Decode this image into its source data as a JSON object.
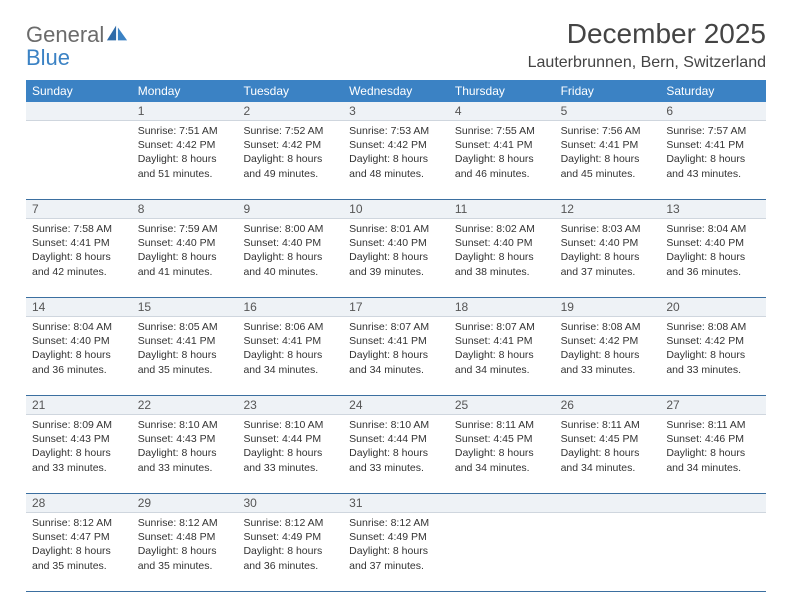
{
  "logo": {
    "general": "General",
    "blue": "Blue"
  },
  "header": {
    "month_title": "December 2025",
    "location": "Lauterbrunnen, Bern, Switzerland"
  },
  "colors": {
    "header_bg": "#3b82c4",
    "daynum_bg": "#eef2f6",
    "rule": "#3b6fa0",
    "text": "#333333"
  },
  "dow": [
    "Sunday",
    "Monday",
    "Tuesday",
    "Wednesday",
    "Thursday",
    "Friday",
    "Saturday"
  ],
  "weeks": [
    {
      "nums": [
        "",
        "1",
        "2",
        "3",
        "4",
        "5",
        "6"
      ],
      "cells": [
        null,
        {
          "sunrise": "Sunrise: 7:51 AM",
          "sunset": "Sunset: 4:42 PM",
          "day1": "Daylight: 8 hours",
          "day2": "and 51 minutes."
        },
        {
          "sunrise": "Sunrise: 7:52 AM",
          "sunset": "Sunset: 4:42 PM",
          "day1": "Daylight: 8 hours",
          "day2": "and 49 minutes."
        },
        {
          "sunrise": "Sunrise: 7:53 AM",
          "sunset": "Sunset: 4:42 PM",
          "day1": "Daylight: 8 hours",
          "day2": "and 48 minutes."
        },
        {
          "sunrise": "Sunrise: 7:55 AM",
          "sunset": "Sunset: 4:41 PM",
          "day1": "Daylight: 8 hours",
          "day2": "and 46 minutes."
        },
        {
          "sunrise": "Sunrise: 7:56 AM",
          "sunset": "Sunset: 4:41 PM",
          "day1": "Daylight: 8 hours",
          "day2": "and 45 minutes."
        },
        {
          "sunrise": "Sunrise: 7:57 AM",
          "sunset": "Sunset: 4:41 PM",
          "day1": "Daylight: 8 hours",
          "day2": "and 43 minutes."
        }
      ]
    },
    {
      "nums": [
        "7",
        "8",
        "9",
        "10",
        "11",
        "12",
        "13"
      ],
      "cells": [
        {
          "sunrise": "Sunrise: 7:58 AM",
          "sunset": "Sunset: 4:41 PM",
          "day1": "Daylight: 8 hours",
          "day2": "and 42 minutes."
        },
        {
          "sunrise": "Sunrise: 7:59 AM",
          "sunset": "Sunset: 4:40 PM",
          "day1": "Daylight: 8 hours",
          "day2": "and 41 minutes."
        },
        {
          "sunrise": "Sunrise: 8:00 AM",
          "sunset": "Sunset: 4:40 PM",
          "day1": "Daylight: 8 hours",
          "day2": "and 40 minutes."
        },
        {
          "sunrise": "Sunrise: 8:01 AM",
          "sunset": "Sunset: 4:40 PM",
          "day1": "Daylight: 8 hours",
          "day2": "and 39 minutes."
        },
        {
          "sunrise": "Sunrise: 8:02 AM",
          "sunset": "Sunset: 4:40 PM",
          "day1": "Daylight: 8 hours",
          "day2": "and 38 minutes."
        },
        {
          "sunrise": "Sunrise: 8:03 AM",
          "sunset": "Sunset: 4:40 PM",
          "day1": "Daylight: 8 hours",
          "day2": "and 37 minutes."
        },
        {
          "sunrise": "Sunrise: 8:04 AM",
          "sunset": "Sunset: 4:40 PM",
          "day1": "Daylight: 8 hours",
          "day2": "and 36 minutes."
        }
      ]
    },
    {
      "nums": [
        "14",
        "15",
        "16",
        "17",
        "18",
        "19",
        "20"
      ],
      "cells": [
        {
          "sunrise": "Sunrise: 8:04 AM",
          "sunset": "Sunset: 4:40 PM",
          "day1": "Daylight: 8 hours",
          "day2": "and 36 minutes."
        },
        {
          "sunrise": "Sunrise: 8:05 AM",
          "sunset": "Sunset: 4:41 PM",
          "day1": "Daylight: 8 hours",
          "day2": "and 35 minutes."
        },
        {
          "sunrise": "Sunrise: 8:06 AM",
          "sunset": "Sunset: 4:41 PM",
          "day1": "Daylight: 8 hours",
          "day2": "and 34 minutes."
        },
        {
          "sunrise": "Sunrise: 8:07 AM",
          "sunset": "Sunset: 4:41 PM",
          "day1": "Daylight: 8 hours",
          "day2": "and 34 minutes."
        },
        {
          "sunrise": "Sunrise: 8:07 AM",
          "sunset": "Sunset: 4:41 PM",
          "day1": "Daylight: 8 hours",
          "day2": "and 34 minutes."
        },
        {
          "sunrise": "Sunrise: 8:08 AM",
          "sunset": "Sunset: 4:42 PM",
          "day1": "Daylight: 8 hours",
          "day2": "and 33 minutes."
        },
        {
          "sunrise": "Sunrise: 8:08 AM",
          "sunset": "Sunset: 4:42 PM",
          "day1": "Daylight: 8 hours",
          "day2": "and 33 minutes."
        }
      ]
    },
    {
      "nums": [
        "21",
        "22",
        "23",
        "24",
        "25",
        "26",
        "27"
      ],
      "cells": [
        {
          "sunrise": "Sunrise: 8:09 AM",
          "sunset": "Sunset: 4:43 PM",
          "day1": "Daylight: 8 hours",
          "day2": "and 33 minutes."
        },
        {
          "sunrise": "Sunrise: 8:10 AM",
          "sunset": "Sunset: 4:43 PM",
          "day1": "Daylight: 8 hours",
          "day2": "and 33 minutes."
        },
        {
          "sunrise": "Sunrise: 8:10 AM",
          "sunset": "Sunset: 4:44 PM",
          "day1": "Daylight: 8 hours",
          "day2": "and 33 minutes."
        },
        {
          "sunrise": "Sunrise: 8:10 AM",
          "sunset": "Sunset: 4:44 PM",
          "day1": "Daylight: 8 hours",
          "day2": "and 33 minutes."
        },
        {
          "sunrise": "Sunrise: 8:11 AM",
          "sunset": "Sunset: 4:45 PM",
          "day1": "Daylight: 8 hours",
          "day2": "and 34 minutes."
        },
        {
          "sunrise": "Sunrise: 8:11 AM",
          "sunset": "Sunset: 4:45 PM",
          "day1": "Daylight: 8 hours",
          "day2": "and 34 minutes."
        },
        {
          "sunrise": "Sunrise: 8:11 AM",
          "sunset": "Sunset: 4:46 PM",
          "day1": "Daylight: 8 hours",
          "day2": "and 34 minutes."
        }
      ]
    },
    {
      "nums": [
        "28",
        "29",
        "30",
        "31",
        "",
        "",
        ""
      ],
      "cells": [
        {
          "sunrise": "Sunrise: 8:12 AM",
          "sunset": "Sunset: 4:47 PM",
          "day1": "Daylight: 8 hours",
          "day2": "and 35 minutes."
        },
        {
          "sunrise": "Sunrise: 8:12 AM",
          "sunset": "Sunset: 4:48 PM",
          "day1": "Daylight: 8 hours",
          "day2": "and 35 minutes."
        },
        {
          "sunrise": "Sunrise: 8:12 AM",
          "sunset": "Sunset: 4:49 PM",
          "day1": "Daylight: 8 hours",
          "day2": "and 36 minutes."
        },
        {
          "sunrise": "Sunrise: 8:12 AM",
          "sunset": "Sunset: 4:49 PM",
          "day1": "Daylight: 8 hours",
          "day2": "and 37 minutes."
        },
        null,
        null,
        null
      ]
    }
  ]
}
